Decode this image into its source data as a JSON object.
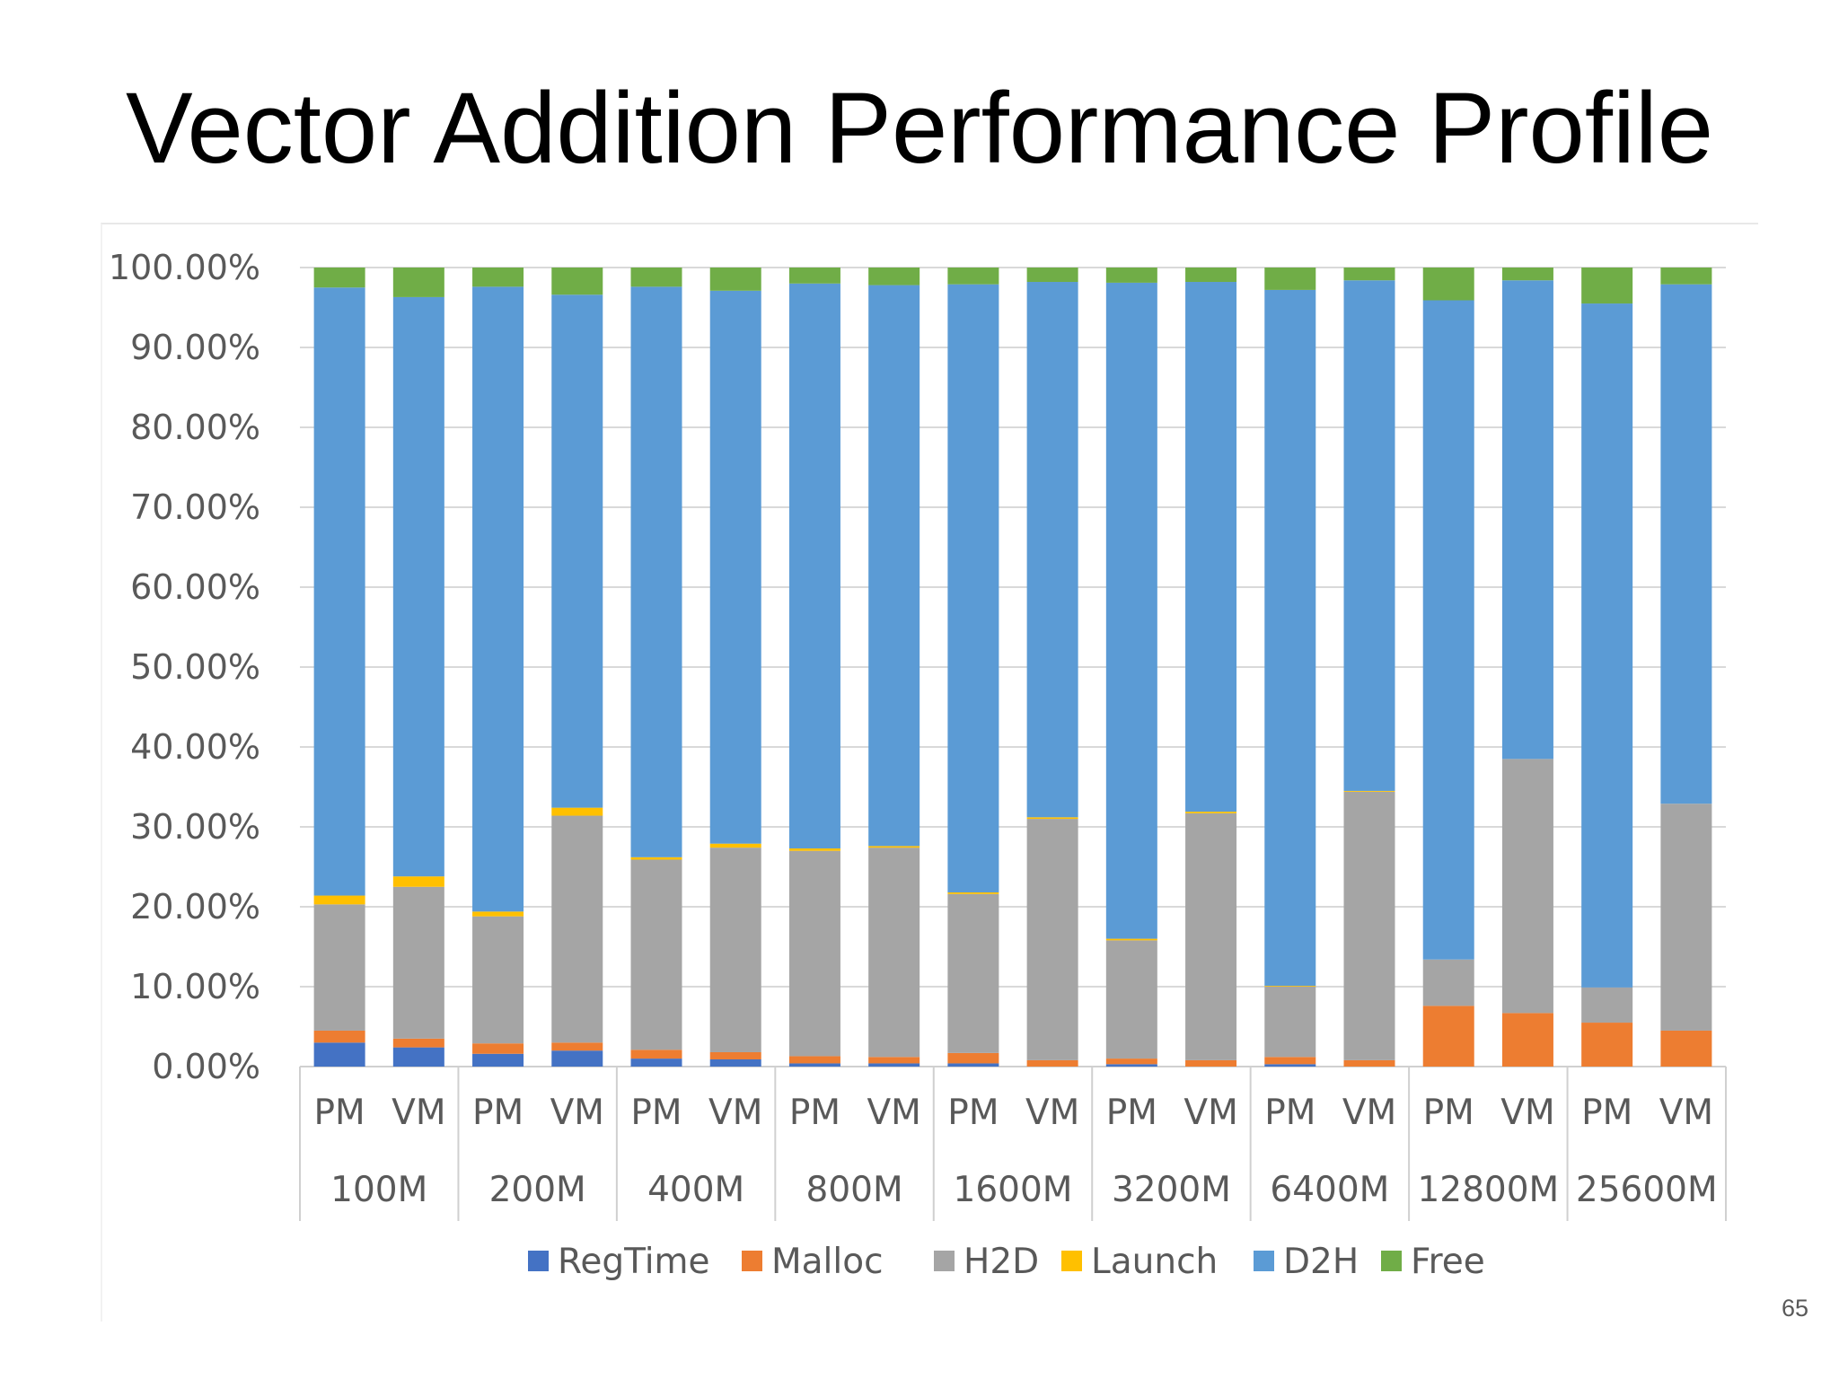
{
  "slide": {
    "title": "Vector Addition Performance Profile",
    "page_number": "65"
  },
  "chart_data": {
    "type": "bar",
    "stacked": true,
    "percent": true,
    "groups": [
      "100M",
      "200M",
      "400M",
      "800M",
      "1600M",
      "3200M",
      "6400M",
      "12800M",
      "25600M"
    ],
    "subcategories": [
      "PM",
      "VM"
    ],
    "categories": [
      "100M PM",
      "100M VM",
      "200M PM",
      "200M VM",
      "400M PM",
      "400M VM",
      "800M PM",
      "800M VM",
      "1600M PM",
      "1600M VM",
      "3200M PM",
      "3200M VM",
      "6400M PM",
      "6400M VM",
      "12800M PM",
      "12800M VM",
      "25600M PM",
      "25600M VM"
    ],
    "yticks": [
      "0.00%",
      "10.00%",
      "20.00%",
      "30.00%",
      "40.00%",
      "50.00%",
      "60.00%",
      "70.00%",
      "80.00%",
      "90.00%",
      "100.00%"
    ],
    "ylim": [
      0,
      100
    ],
    "grid": true,
    "legend_position": "bottom",
    "series": [
      {
        "name": "RegTime",
        "color": "#4472C4",
        "values": [
          3.0,
          2.4,
          1.6,
          2.0,
          1.0,
          0.9,
          0.4,
          0.4,
          0.4,
          0.0,
          0.3,
          0.0,
          0.3,
          0.0,
          0.0,
          0.0,
          0.0,
          0.0
        ]
      },
      {
        "name": "Malloc",
        "color": "#ED7D31",
        "values": [
          1.5,
          1.1,
          1.3,
          1.0,
          1.1,
          0.9,
          0.9,
          0.8,
          1.3,
          0.8,
          0.7,
          0.8,
          0.9,
          0.8,
          7.6,
          6.7,
          5.5,
          4.5
        ]
      },
      {
        "name": "H2D",
        "color": "#A5A5A5",
        "values": [
          15.8,
          19.0,
          15.9,
          28.4,
          23.8,
          25.6,
          25.7,
          26.2,
          19.9,
          30.2,
          14.8,
          30.9,
          8.8,
          33.6,
          5.8,
          31.8,
          4.4,
          28.4
        ]
      },
      {
        "name": "Launch",
        "color": "#FFC000",
        "values": [
          1.1,
          1.3,
          0.6,
          1.0,
          0.3,
          0.5,
          0.3,
          0.2,
          0.2,
          0.2,
          0.2,
          0.2,
          0.1,
          0.1,
          0.0,
          0.0,
          0.0,
          0.0
        ]
      },
      {
        "name": "D2H",
        "color": "#5B9BD5",
        "values": [
          76.1,
          72.5,
          78.2,
          64.2,
          71.4,
          69.2,
          70.7,
          70.2,
          76.1,
          67.0,
          82.1,
          66.3,
          87.1,
          63.9,
          82.5,
          59.9,
          85.6,
          65.0
        ]
      },
      {
        "name": "Free",
        "color": "#70AD47",
        "values": [
          2.5,
          3.7,
          2.4,
          3.4,
          2.4,
          2.9,
          2.0,
          2.2,
          2.1,
          1.8,
          1.9,
          1.8,
          2.8,
          1.6,
          4.1,
          1.6,
          4.5,
          2.1
        ]
      }
    ]
  }
}
